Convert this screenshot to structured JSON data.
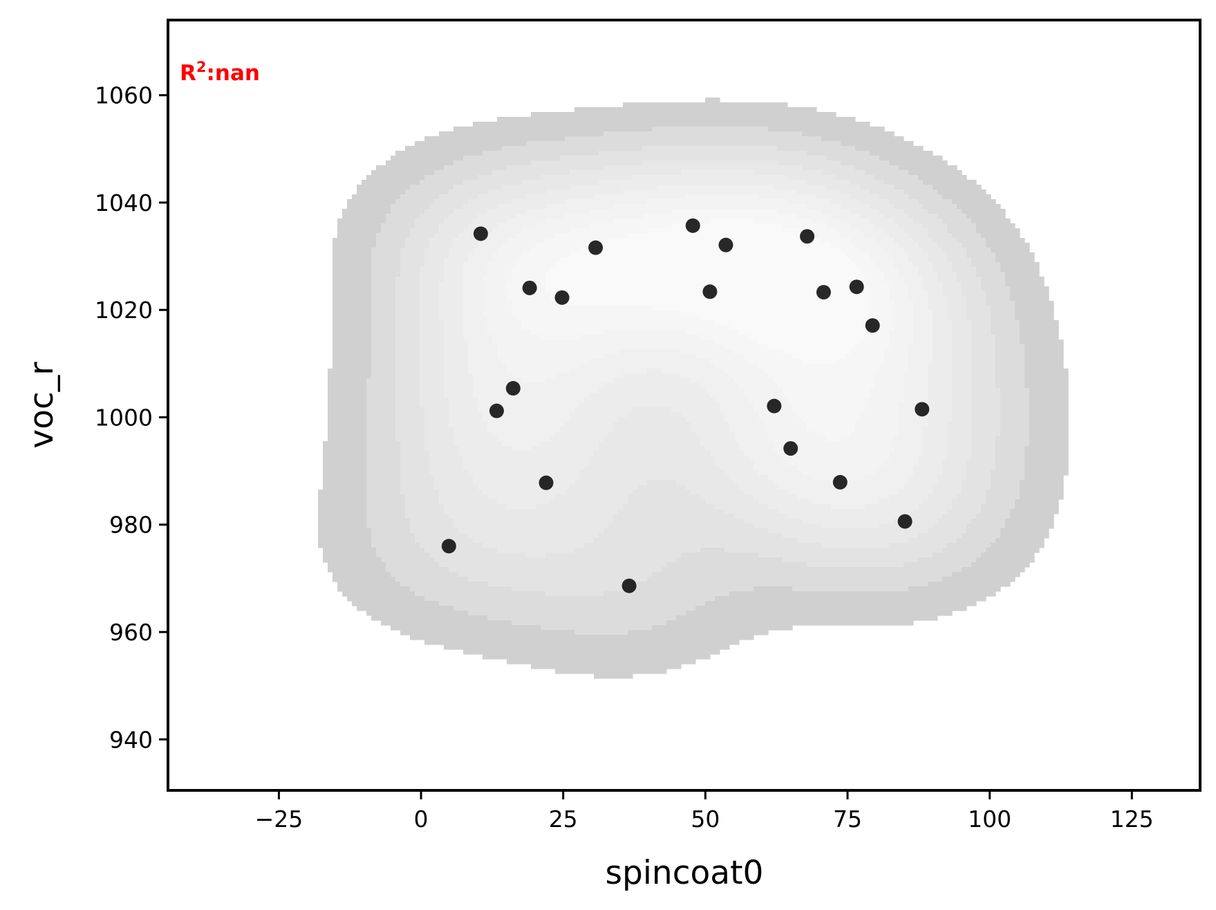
{
  "chart_data": {
    "type": "scatter",
    "title": "",
    "xlabel": "spincoat0",
    "ylabel": "voc_r",
    "xlim": [
      -44.5,
      137
    ],
    "ylim": [
      930.5,
      1074
    ],
    "x_ticks": [
      -25,
      0,
      25,
      50,
      75,
      100,
      125
    ],
    "x_tick_labels": [
      "−25",
      "0",
      "25",
      "50",
      "75",
      "100",
      "125"
    ],
    "y_ticks": [
      940,
      960,
      980,
      1000,
      1020,
      1040,
      1060
    ],
    "y_tick_labels": [
      "940",
      "960",
      "980",
      "1000",
      "1020",
      "1040",
      "1060"
    ],
    "grid": false,
    "annotation": {
      "text_main": "R",
      "text_sup": "2",
      "text_rest": ":nan",
      "color": "#ff0000"
    },
    "points_color": "#111111",
    "density_background": true,
    "density_colors": [
      "#d0d0d0",
      "#dcdcdc",
      "#e3e3e3",
      "#e8e8e8",
      "#ececec",
      "#f0f0f0",
      "#f3f3f3",
      "#f6f6f6",
      "#f9f9f9"
    ],
    "series": [
      {
        "x": [
          10.5,
          4.9,
          36.6,
          22.0,
          13.3,
          16.2,
          19.1,
          24.8,
          30.7,
          47.8,
          53.6,
          50.8,
          67.9,
          70.8,
          76.6,
          79.4,
          88.1,
          85.1,
          62.1,
          65.0,
          73.7
        ],
        "y": [
          1034.2,
          976.0,
          968.6,
          987.8,
          1001.2,
          1005.4,
          1024.1,
          1022.3,
          1031.6,
          1035.7,
          1032.1,
          1023.4,
          1033.7,
          1023.3,
          1024.3,
          1017.1,
          1001.5,
          980.6,
          1002.1,
          994.2,
          987.9
        ]
      }
    ]
  }
}
